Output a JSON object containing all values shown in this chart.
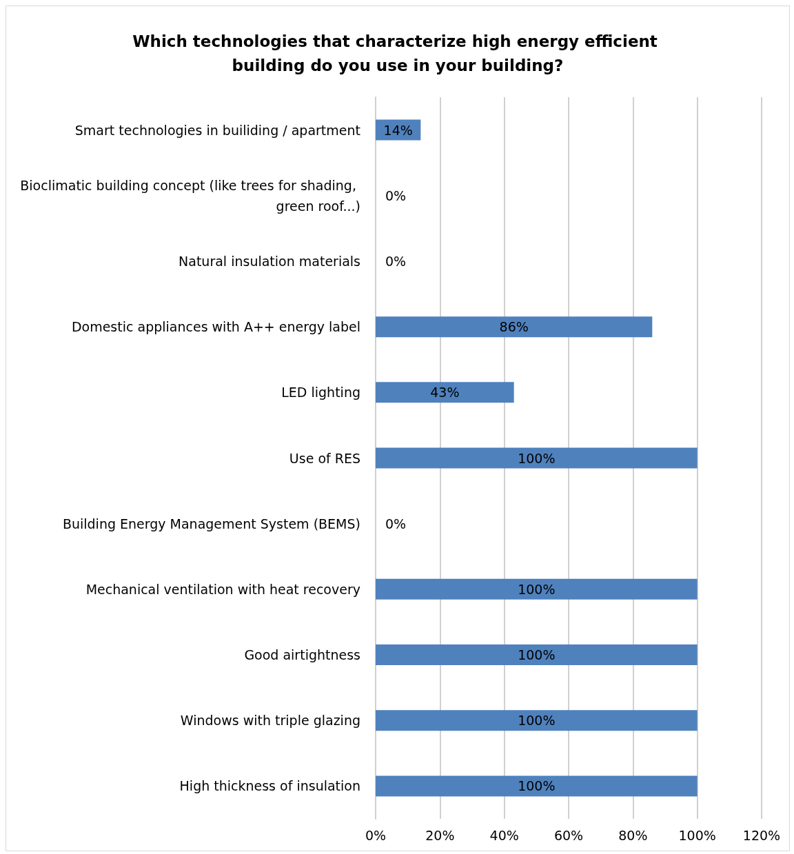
{
  "chart_data": {
    "type": "bar",
    "orientation": "horizontal",
    "title": "Which technologies that characterize high energy efficient building do you use in your building?",
    "categories": [
      "Smart technologies in builiding / apartment",
      "Bioclimatic building concept (like trees for shading, green roof...)",
      "Natural insulation materials",
      "Domestic appliances with A++ energy label",
      "LED lighting",
      "Use of RES",
      "Building Energy Management System (BEMS)",
      "Mechanical ventilation with heat recovery",
      "Good airtightness",
      "Windows with triple glazing",
      "High thickness of insulation"
    ],
    "values": [
      14,
      0,
      0,
      86,
      43,
      100,
      0,
      100,
      100,
      100,
      100
    ],
    "value_labels": [
      "14%",
      "0%",
      "0%",
      "86%",
      "43%",
      "100%",
      "0%",
      "100%",
      "100%",
      "100%",
      "100%"
    ],
    "color": "#4f81bd",
    "xlim": [
      0,
      120
    ],
    "xticks": [
      {
        "value": 0,
        "label": "0%"
      },
      {
        "value": 20,
        "label": "20%"
      },
      {
        "value": 40,
        "label": "40%"
      },
      {
        "value": 60,
        "label": "60%"
      },
      {
        "value": 80,
        "label": "80%"
      },
      {
        "value": 100,
        "label": "100%"
      },
      {
        "value": 120,
        "label": "120%"
      }
    ],
    "grid": "x",
    "legend": false
  }
}
